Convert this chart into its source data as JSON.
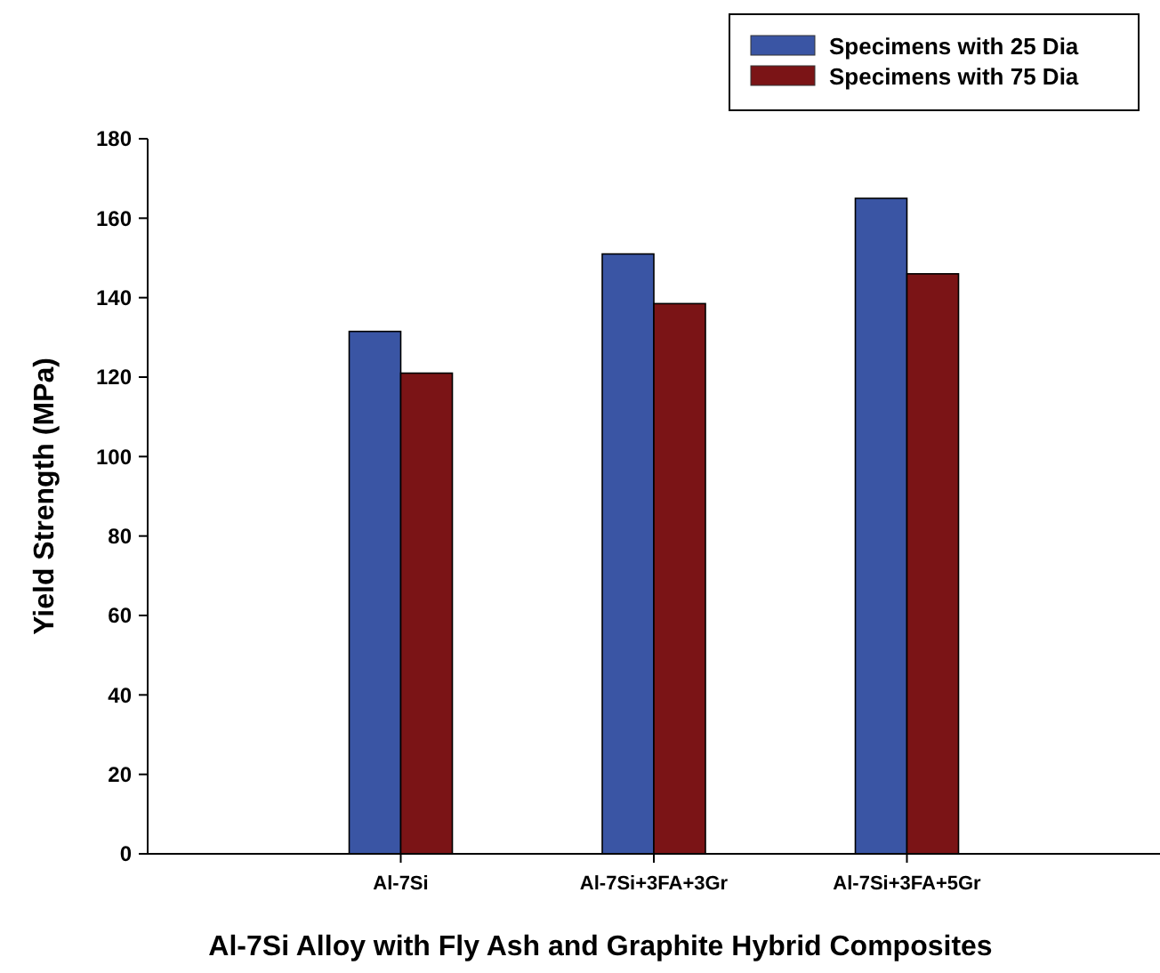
{
  "chart_data": {
    "type": "bar",
    "xlabel": "Al-7Si Alloy with Fly Ash and Graphite Hybrid Composites",
    "ylabel": "Yield Strength (MPa)",
    "categories": [
      "Al-7Si",
      "Al-7Si+3FA+3Gr",
      "Al-7Si+3FA+5Gr"
    ],
    "series": [
      {
        "name": "Specimens with 25 Dia",
        "color": "#3a55a4",
        "values": [
          131.5,
          151,
          165
        ]
      },
      {
        "name": "Specimens with 75 Dia",
        "color": "#7b1416",
        "values": [
          121,
          138.5,
          146
        ]
      }
    ],
    "ylim": [
      0,
      180
    ],
    "yticks": [
      0,
      20,
      40,
      60,
      80,
      100,
      120,
      140,
      160,
      180
    ],
    "grid": false,
    "legend": "top right"
  }
}
